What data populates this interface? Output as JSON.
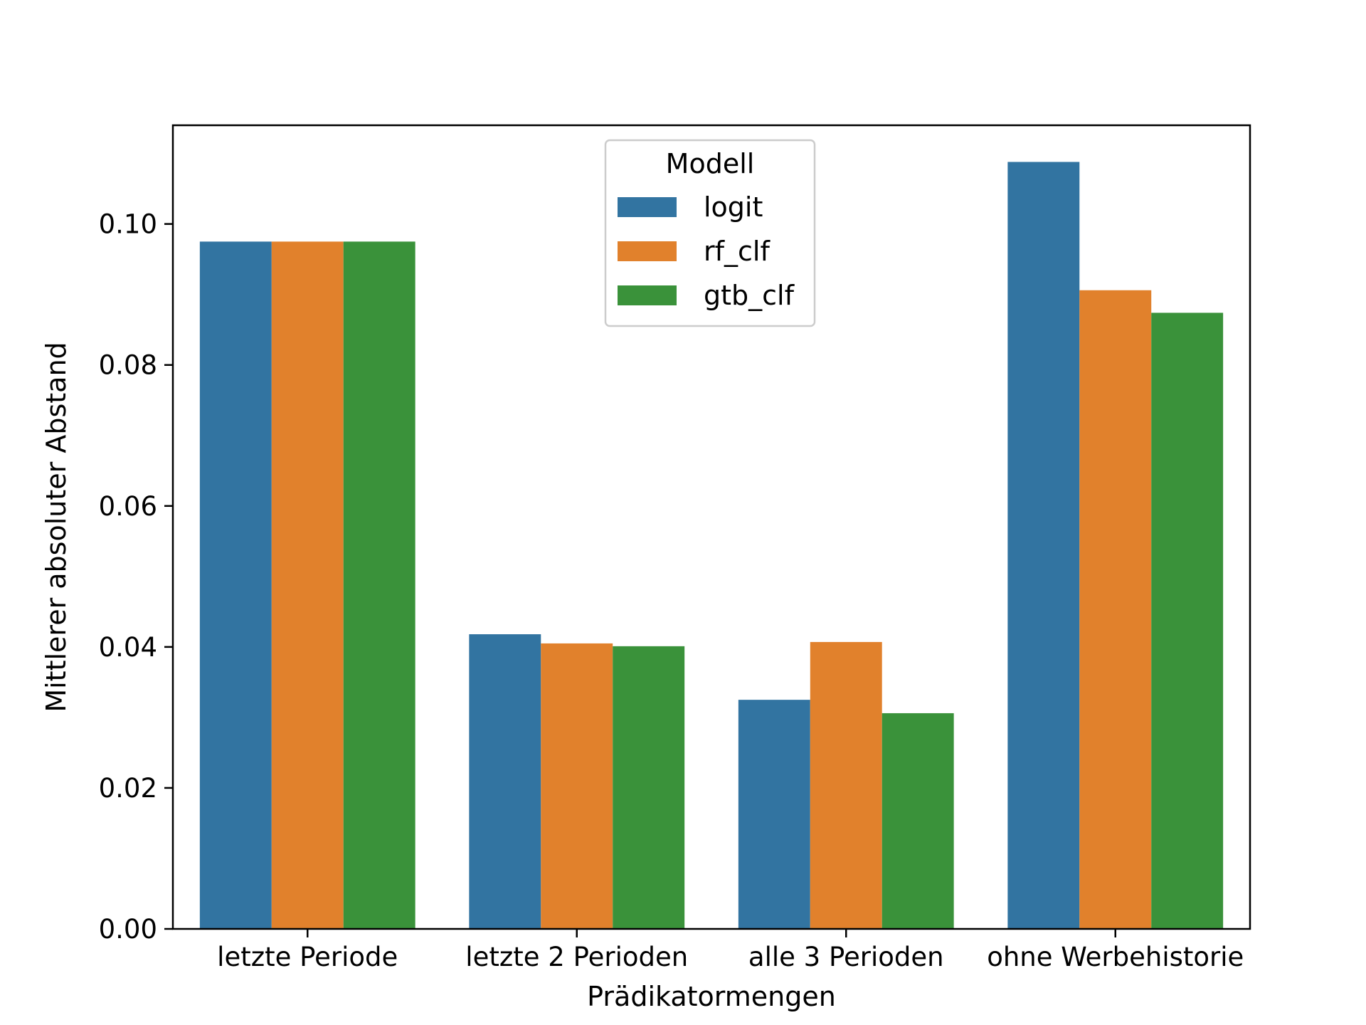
{
  "chart_data": {
    "type": "bar",
    "xlabel": "Prädikatormengen",
    "ylabel": "Mittlerer absoluter Abstand",
    "categories": [
      "letzte Periode",
      "letzte 2 Perioden",
      "alle 3 Perioden",
      "ohne Werbehistorie"
    ],
    "series": [
      {
        "name": "logit",
        "color": "#3274a1",
        "values": [
          0.0975,
          0.0418,
          0.0325,
          0.1088
        ]
      },
      {
        "name": "rf_clf",
        "color": "#e1812c",
        "values": [
          0.0975,
          0.0405,
          0.0407,
          0.0906
        ]
      },
      {
        "name": "gtb_clf",
        "color": "#3a923a",
        "values": [
          0.0975,
          0.0401,
          0.0306,
          0.0874
        ]
      }
    ],
    "ylim": [
      0,
      0.114
    ],
    "yticks": [
      0.0,
      0.02,
      0.04,
      0.06,
      0.08,
      0.1
    ],
    "ytick_labels": [
      "0.00",
      "0.02",
      "0.04",
      "0.06",
      "0.08",
      "0.10"
    ],
    "legend": {
      "title": "Modell",
      "position": "top-center"
    },
    "grid": false
  }
}
